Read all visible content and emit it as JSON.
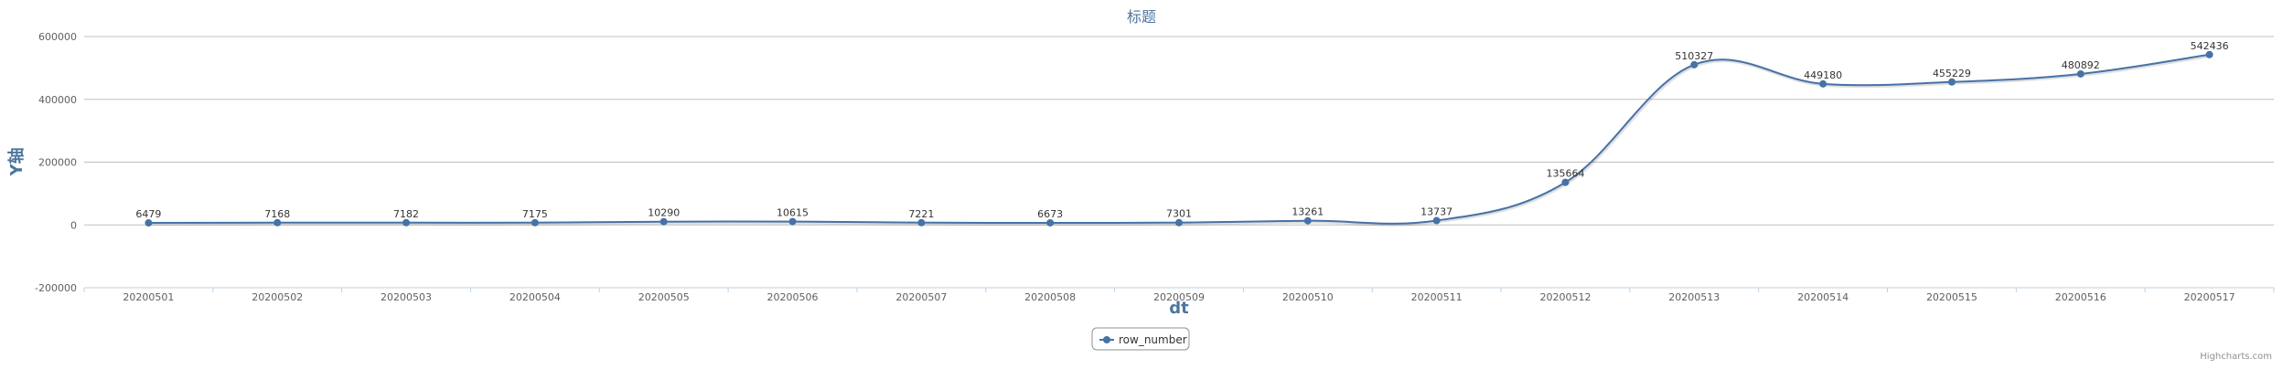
{
  "chart_data": {
    "type": "line",
    "title": "标题",
    "xlabel": "dt",
    "ylabel": "Y轴",
    "ylim": [
      -200000,
      600000
    ],
    "yticks": [
      -200000,
      0,
      200000,
      400000,
      600000
    ],
    "ytick_labels": [
      "-200000",
      "0",
      "200000",
      "400000",
      "600000"
    ],
    "categories": [
      "20200501",
      "20200502",
      "20200503",
      "20200504",
      "20200505",
      "20200506",
      "20200507",
      "20200508",
      "20200509",
      "20200510",
      "20200511",
      "20200512",
      "20200513",
      "20200514",
      "20200515",
      "20200516",
      "20200517"
    ],
    "series": [
      {
        "name": "row_number",
        "values": [
          6479,
          7168,
          7182,
          7175,
          10290,
          10615,
          7221,
          6673,
          7301,
          13261,
          13737,
          135664,
          510327,
          449180,
          455229,
          480892,
          542436
        ],
        "labels": [
          "6479",
          "7168",
          "7182",
          "7175",
          "10290",
          "10615",
          "7221",
          "6673",
          "7301",
          "13261",
          "13737",
          "135664",
          "510327",
          "449180",
          "455229",
          "480892",
          "542436"
        ]
      }
    ],
    "grid": true,
    "legend": "bottom-center",
    "colors": {
      "series": "#4572a7",
      "title": "#4d759e",
      "grid": "#c0c0c0"
    }
  },
  "credits": "Highcharts.com"
}
